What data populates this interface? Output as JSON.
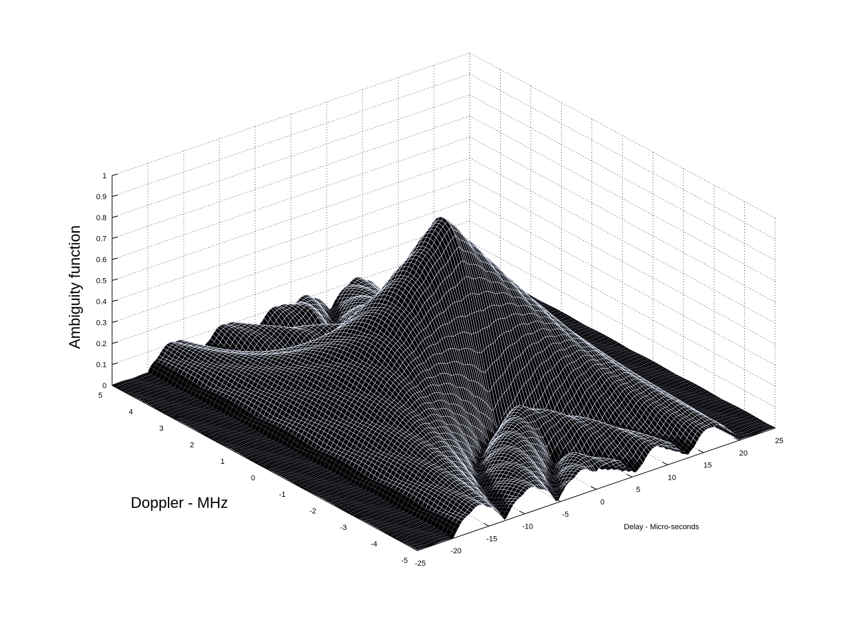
{
  "chart_data": {
    "type": "surface",
    "title": "",
    "xlabel": "Delay - Micro-seconds",
    "ylabel": "Doppler - MHz",
    "zlabel": "Ambiguity function",
    "xlim": [
      -25,
      25
    ],
    "ylim": [
      -5,
      5
    ],
    "zlim": [
      0,
      1
    ],
    "xticks": [
      -25,
      -20,
      -15,
      -10,
      -5,
      0,
      5,
      10,
      15,
      20,
      25
    ],
    "yticks": [
      5,
      4,
      3,
      2,
      1,
      0,
      -1,
      -2,
      -3,
      -4,
      -5
    ],
    "zticks": [
      0,
      0.1,
      0.2,
      0.3,
      0.4,
      0.5,
      0.6,
      0.7,
      0.8,
      0.9,
      1
    ],
    "grid": true,
    "peak": {
      "x": 0,
      "y": 0,
      "z": 0.9
    },
    "surface_shape": "triangular ridge along zero Doppler, peak 0.9 at delay 0, falling to ~0 at delay ±20; narrow in Doppler with low sidelobe ripples",
    "colors": {
      "surface_face": "#000000",
      "surface_edge_light": "#e8ecff",
      "surface_edge_dark": "#6b6f80",
      "background": "#ffffff"
    }
  }
}
